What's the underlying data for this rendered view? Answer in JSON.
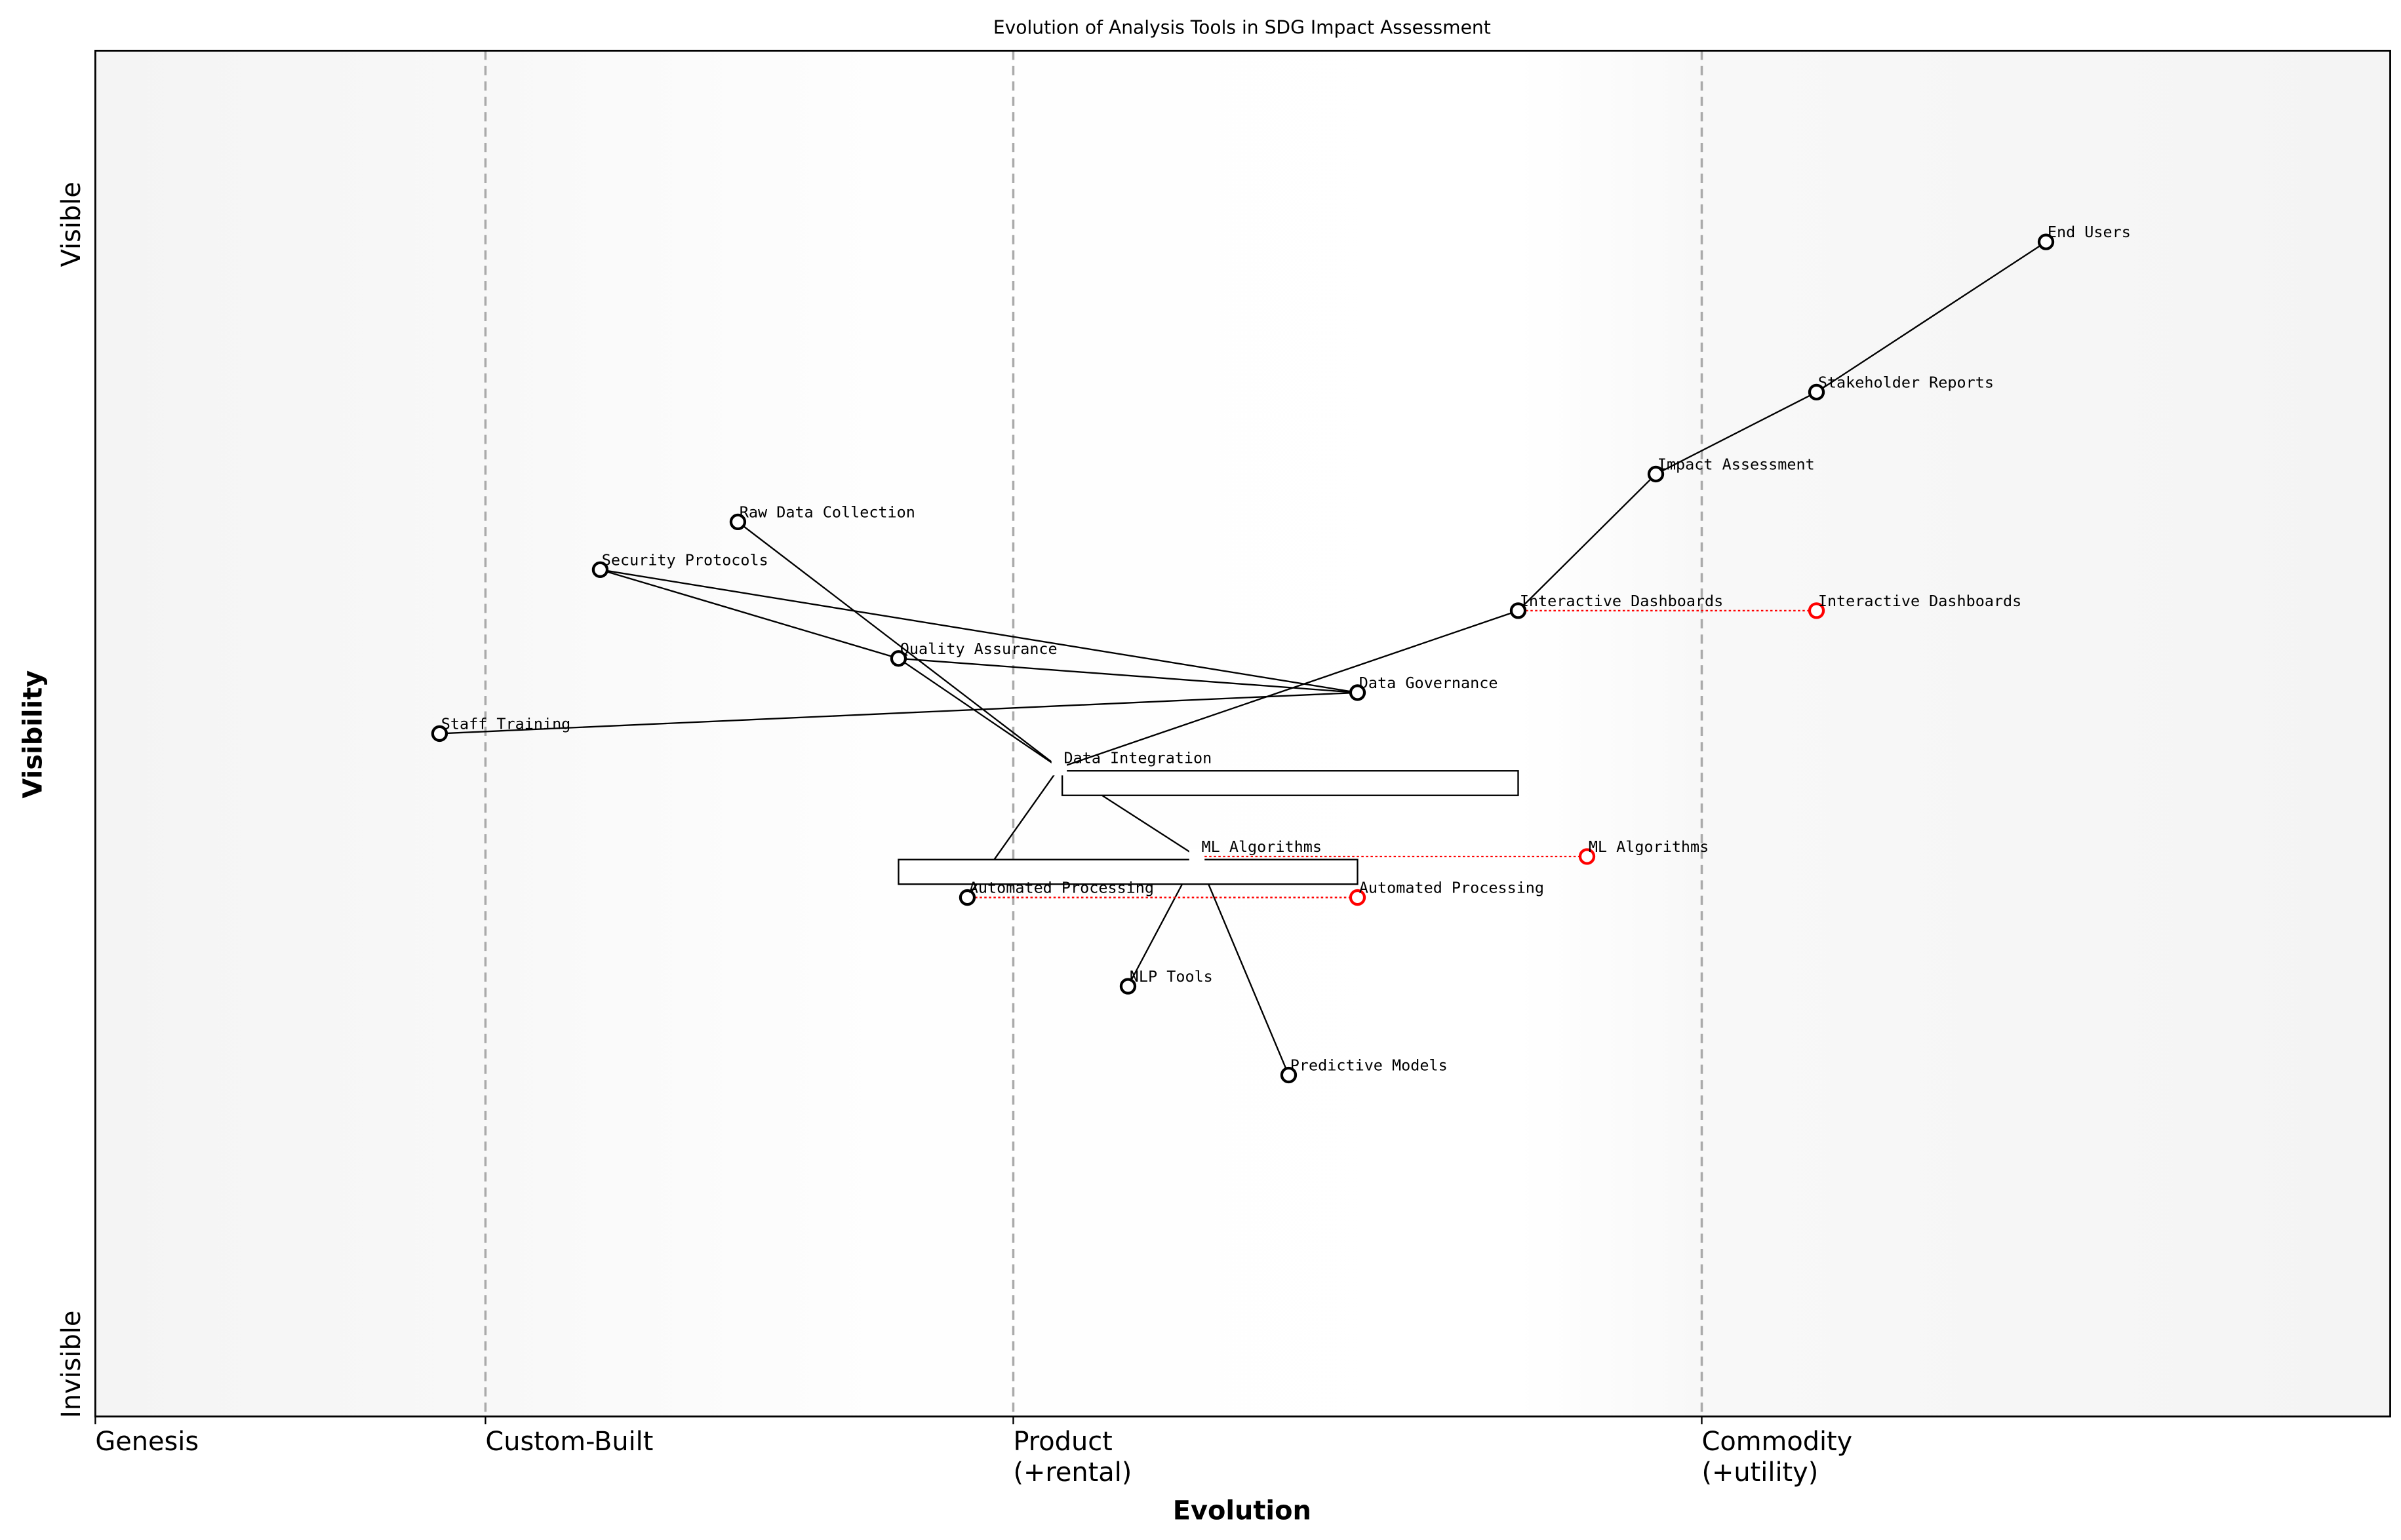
{
  "chart_data": {
    "type": "scatter",
    "subtype": "wardley-map",
    "title": "Evolution of Analysis Tools in SDG Impact Assessment",
    "xlabel": "Evolution",
    "ylabel": "Visibility",
    "xlim": [
      0,
      1
    ],
    "ylim": [
      0,
      1
    ],
    "y_tick_labels": {
      "top": "Visible",
      "bottom": "Invisible"
    },
    "stages": [
      {
        "label": "Genesis",
        "x": 0.0
      },
      {
        "label": "Custom-Built",
        "x": 0.17
      },
      {
        "label": "Product\n(+rental)",
        "x": 0.4
      },
      {
        "label": "Commodity\n(+utility)",
        "x": 0.7
      }
    ],
    "stage_label_lines": [
      [
        "Genesis"
      ],
      [
        "Custom-Built"
      ],
      [
        "Product",
        "(+rental)"
      ],
      [
        "Commodity",
        "(+utility)"
      ]
    ],
    "colors": {
      "node": "#000000",
      "evolve": "#ff0000",
      "divider": "#aaaaaa",
      "bg_edge": "#f5f5f5"
    },
    "components": [
      {
        "name": "End Users",
        "x": 0.85,
        "y": 0.86
      },
      {
        "name": "Stakeholder Reports",
        "x": 0.75,
        "y": 0.75
      },
      {
        "name": "Impact Assessment",
        "x": 0.68,
        "y": 0.69
      },
      {
        "name": "Interactive Dashboards",
        "x": 0.62,
        "y": 0.59
      },
      {
        "name": "Data Governance",
        "x": 0.55,
        "y": 0.53
      },
      {
        "name": "Quality Assurance",
        "x": 0.35,
        "y": 0.555
      },
      {
        "name": "Security Protocols",
        "x": 0.22,
        "y": 0.62
      },
      {
        "name": "Raw Data Collection",
        "x": 0.28,
        "y": 0.655
      },
      {
        "name": "Staff Training",
        "x": 0.15,
        "y": 0.5
      },
      {
        "name": "Data Integration",
        "x": 0.42,
        "y": 0.475,
        "marker": false,
        "box_to": 0.62
      },
      {
        "name": "ML Algorithms",
        "x": 0.48,
        "y": 0.41,
        "marker": false,
        "box_from": 0.35,
        "box_to": 0.55
      },
      {
        "name": "Automated Processing",
        "x": 0.38,
        "y": 0.38
      },
      {
        "name": "NLP Tools",
        "x": 0.45,
        "y": 0.315
      },
      {
        "name": "Predictive Models",
        "x": 0.52,
        "y": 0.25
      }
    ],
    "links": [
      [
        "End Users",
        "Stakeholder Reports"
      ],
      [
        "Stakeholder Reports",
        "Impact Assessment"
      ],
      [
        "Impact Assessment",
        "Interactive Dashboards"
      ],
      [
        "Interactive Dashboards",
        "Data Integration"
      ],
      [
        "Raw Data Collection",
        "Data Integration"
      ],
      [
        "Quality Assurance",
        "Data Integration"
      ],
      [
        "Security Protocols",
        "Quality Assurance"
      ],
      [
        "Security Protocols",
        "Data Governance"
      ],
      [
        "Quality Assurance",
        "Data Governance"
      ],
      [
        "Staff Training",
        "Data Governance"
      ],
      [
        "Data Integration",
        "Automated Processing"
      ],
      [
        "Data Integration",
        "ML Algorithms"
      ],
      [
        "ML Algorithms",
        "NLP Tools"
      ],
      [
        "ML Algorithms",
        "Predictive Models"
      ]
    ],
    "evolutions": [
      {
        "name": "Interactive Dashboards",
        "to_x": 0.75
      },
      {
        "name": "ML Algorithms",
        "to_x": 0.65
      },
      {
        "name": "Automated Processing",
        "to_x": 0.55
      }
    ]
  }
}
